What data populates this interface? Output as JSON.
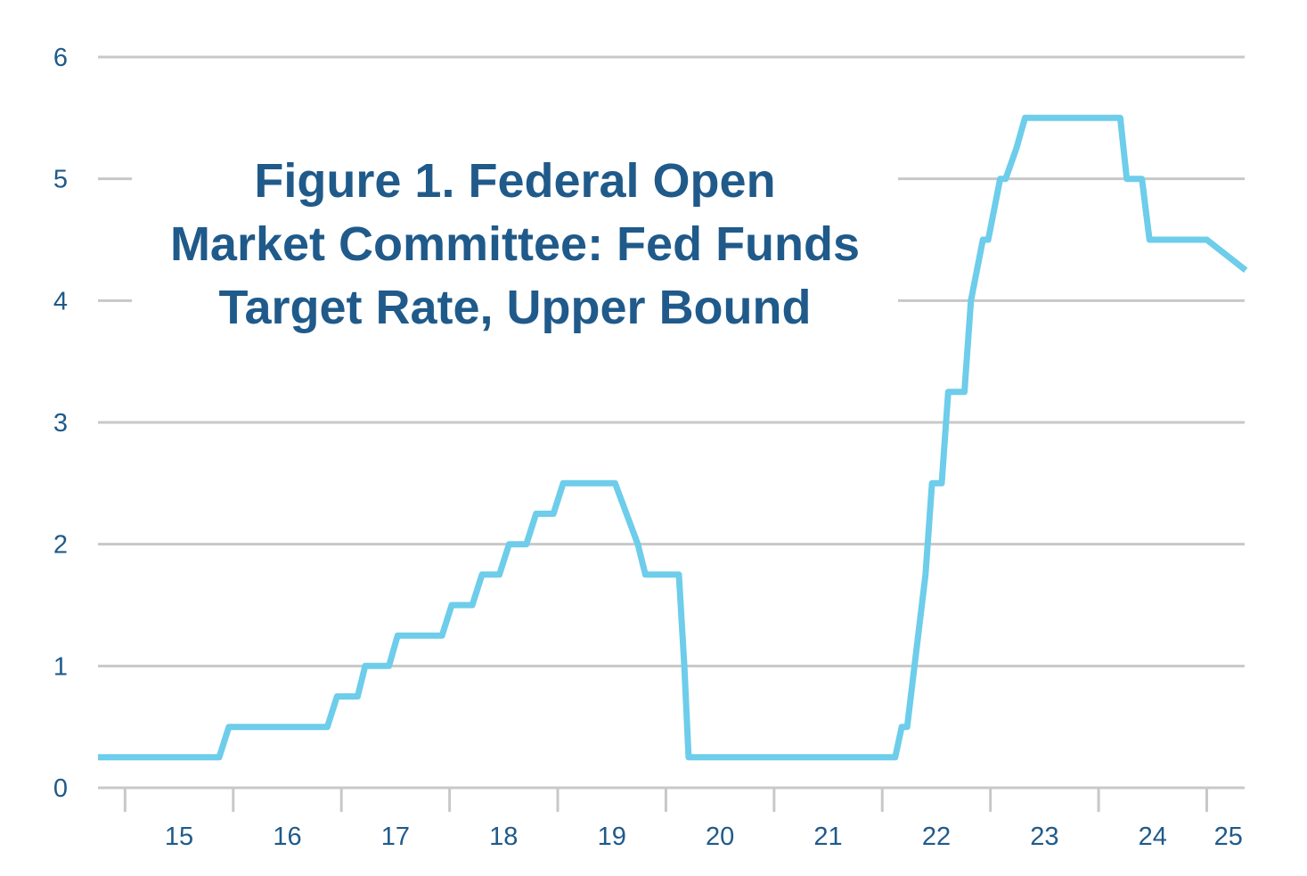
{
  "title_lines": [
    "Figure 1. Federal Open",
    "Market Committee: Fed Funds",
    "Target Rate, Upper Bound"
  ],
  "colors": {
    "line": "#6dcdea",
    "grid": "#c8c8c8",
    "text": "#1f5a8a"
  },
  "chart_data": {
    "type": "line",
    "title": "Figure 1. Federal Open Market Committee: Fed Funds Target Rate, Upper Bound",
    "xlabel": "",
    "ylabel": "",
    "xlim": [
      2014.75,
      2025.35
    ],
    "ylim": [
      0,
      6
    ],
    "y_ticks": [
      0,
      1,
      2,
      3,
      4,
      5,
      6
    ],
    "x_ticks": [
      2015.5,
      2016.5,
      2017.5,
      2018.5,
      2019.5,
      2020.5,
      2021.5,
      2022.5,
      2023.5,
      2024.5,
      2025.2
    ],
    "x_tick_labels": [
      "15",
      "16",
      "17",
      "18",
      "19",
      "20",
      "21",
      "22",
      "23",
      "24",
      "25"
    ],
    "grid": true,
    "legend": "none",
    "series": [
      {
        "x": [
          2014.75,
          2015.87,
          2015.96,
          2016.87,
          2016.96,
          2017.15,
          2017.22,
          2017.44,
          2017.52,
          2017.93,
          2018.02,
          2018.21,
          2018.3,
          2018.46,
          2018.55,
          2018.71,
          2018.8,
          2018.96,
          2019.05,
          2019.53,
          2019.74,
          2019.81,
          2020.12,
          2020.17,
          2020.21,
          2021.5,
          2022.12,
          2022.18,
          2022.23,
          2022.4,
          2022.46,
          2022.55,
          2022.61,
          2022.76,
          2022.82,
          2022.93,
          2022.98,
          2023.09,
          2023.14,
          2023.24,
          2023.32,
          2024.2,
          2024.26,
          2024.4,
          2024.47,
          2025.0,
          2025.36
        ],
        "y": [
          0.25,
          0.25,
          0.5,
          0.5,
          0.75,
          0.75,
          1.0,
          1.0,
          1.25,
          1.25,
          1.5,
          1.5,
          1.75,
          1.75,
          2.0,
          2.0,
          2.25,
          2.25,
          2.5,
          2.5,
          2.0,
          1.75,
          1.75,
          1.0,
          0.25,
          0.25,
          0.25,
          0.5,
          0.5,
          1.75,
          2.5,
          2.5,
          3.25,
          3.25,
          4.0,
          4.5,
          4.5,
          5.0,
          5.0,
          5.25,
          5.5,
          5.5,
          5.0,
          5.0,
          4.5,
          4.5,
          4.25
        ]
      }
    ]
  }
}
